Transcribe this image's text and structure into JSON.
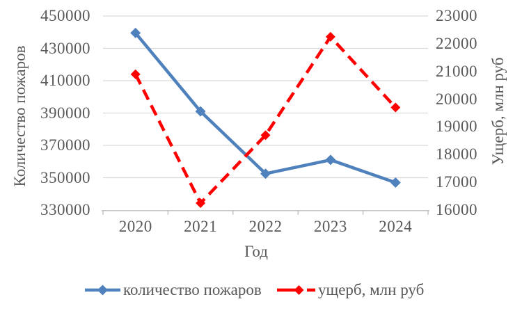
{
  "chart_data": {
    "type": "line",
    "title": "",
    "xlabel": "Год",
    "x_categories": [
      "2020",
      "2021",
      "2022",
      "2023",
      "2024"
    ],
    "left_axis": {
      "label": "Количество пожаров",
      "min": 330000,
      "max": 450000,
      "step": 20000,
      "ticks": [
        "450000",
        "430000",
        "410000",
        "390000",
        "370000",
        "350000",
        "330000"
      ]
    },
    "right_axis": {
      "label": "Ущерб, млн руб",
      "min": 16000,
      "max": 23000,
      "step": 1000,
      "ticks": [
        "23000",
        "22000",
        "21000",
        "20000",
        "19000",
        "18000",
        "17000",
        "16000"
      ]
    },
    "series": [
      {
        "name": "количество пожаров",
        "axis": "left",
        "color": "#4F81BD",
        "dash": "solid",
        "marker": "diamond",
        "values": [
          439500,
          391000,
          352500,
          361000,
          347000
        ]
      },
      {
        "name": "ущерб, млн руб",
        "axis": "right",
        "color": "#FF0000",
        "dash": "dashed",
        "marker": "diamond",
        "values": [
          20900,
          16250,
          18700,
          22250,
          19700
        ]
      }
    ],
    "legend_position": "bottom",
    "grid": "horizontal"
  },
  "colors": {
    "gridline": "#d9d9d9",
    "axis_line": "#bfbfbf",
    "text": "#595959",
    "background": "#ffffff"
  }
}
